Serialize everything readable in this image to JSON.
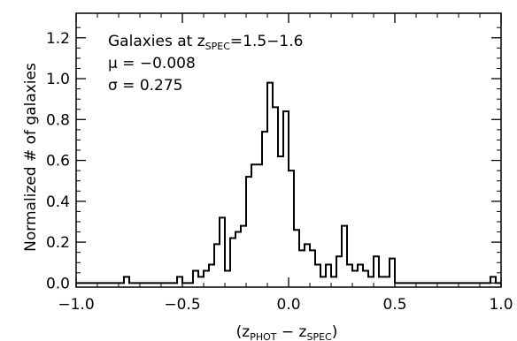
{
  "chart_data": {
    "type": "histogram",
    "xlabel": {
      "open": "(z",
      "sub1": "PHOT",
      "mid": " − z",
      "sub2": "SPEC",
      "close": ")"
    },
    "ylabel": "Normalized # of galaxies",
    "xlim": [
      -1.0,
      1.0
    ],
    "ylim": [
      -0.02,
      1.32
    ],
    "xticks": [
      -1.0,
      -0.5,
      0.0,
      0.5,
      1.0
    ],
    "xtick_labels": [
      "−1.0",
      "−0.5",
      "0.0",
      "0.5",
      "1.0"
    ],
    "yticks": [
      0.0,
      0.2,
      0.4,
      0.6,
      0.8,
      1.0,
      1.2
    ],
    "ytick_labels": [
      "0.0",
      "0.2",
      "0.4",
      "0.6",
      "0.8",
      "1.0",
      "1.2"
    ],
    "annotations": {
      "line1_text": "Galaxies at z",
      "line1_sub": "SPEC",
      "line1_tail": "=1.5−1.6",
      "line2": "μ  =  −0.008",
      "line3": "σ  =   0.275"
    },
    "bin_width": 0.025,
    "bins": [
      {
        "x": -0.775,
        "y": 0.03
      },
      {
        "x": -0.75,
        "y": 0.0
      },
      {
        "x": -0.525,
        "y": 0.03
      },
      {
        "x": -0.5,
        "y": 0.0
      },
      {
        "x": -0.45,
        "y": 0.06
      },
      {
        "x": -0.425,
        "y": 0.03
      },
      {
        "x": -0.4,
        "y": 0.06
      },
      {
        "x": -0.375,
        "y": 0.09
      },
      {
        "x": -0.35,
        "y": 0.19
      },
      {
        "x": -0.325,
        "y": 0.32
      },
      {
        "x": -0.3,
        "y": 0.06
      },
      {
        "x": -0.275,
        "y": 0.22
      },
      {
        "x": -0.25,
        "y": 0.25
      },
      {
        "x": -0.225,
        "y": 0.28
      },
      {
        "x": -0.2,
        "y": 0.52
      },
      {
        "x": -0.175,
        "y": 0.58
      },
      {
        "x": -0.15,
        "y": 0.58
      },
      {
        "x": -0.125,
        "y": 0.74
      },
      {
        "x": -0.1,
        "y": 0.98
      },
      {
        "x": -0.075,
        "y": 0.86
      },
      {
        "x": -0.05,
        "y": 0.62
      },
      {
        "x": -0.025,
        "y": 0.84
      },
      {
        "x": 0.0,
        "y": 0.55
      },
      {
        "x": 0.025,
        "y": 0.26
      },
      {
        "x": 0.05,
        "y": 0.16
      },
      {
        "x": 0.075,
        "y": 0.19
      },
      {
        "x": 0.1,
        "y": 0.16
      },
      {
        "x": 0.125,
        "y": 0.09
      },
      {
        "x": 0.15,
        "y": 0.03
      },
      {
        "x": 0.175,
        "y": 0.09
      },
      {
        "x": 0.2,
        "y": 0.03
      },
      {
        "x": 0.225,
        "y": 0.13
      },
      {
        "x": 0.25,
        "y": 0.28
      },
      {
        "x": 0.275,
        "y": 0.09
      },
      {
        "x": 0.3,
        "y": 0.06
      },
      {
        "x": 0.325,
        "y": 0.09
      },
      {
        "x": 0.35,
        "y": 0.06
      },
      {
        "x": 0.375,
        "y": 0.03
      },
      {
        "x": 0.4,
        "y": 0.13
      },
      {
        "x": 0.425,
        "y": 0.03
      },
      {
        "x": 0.45,
        "y": 0.03
      },
      {
        "x": 0.475,
        "y": 0.12
      },
      {
        "x": 0.5,
        "y": 0.0
      },
      {
        "x": 0.95,
        "y": 0.03
      }
    ],
    "line_color": "#000000",
    "grid": false
  }
}
